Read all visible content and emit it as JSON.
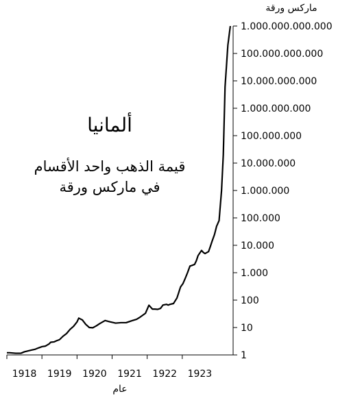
{
  "chart_data": {
    "type": "line",
    "title": "ألمانيا",
    "subtitle": "قيمة الذهب واحد الأقسام\nفي ماركس ورقة",
    "xlabel": "عام",
    "ylabel": "ماركس ورقة",
    "yscale": "log",
    "ylim": [
      1,
      1000000000000
    ],
    "xlim": [
      1917.5,
      1923.95
    ],
    "grid": false,
    "legend": "none",
    "line_color": "#000000",
    "x_ticks": [
      {
        "value": 1918,
        "label": "1918"
      },
      {
        "value": 1919,
        "label": "1919"
      },
      {
        "value": 1920,
        "label": "1920"
      },
      {
        "value": 1921,
        "label": "1921"
      },
      {
        "value": 1922,
        "label": "1922"
      },
      {
        "value": 1923,
        "label": "1923"
      }
    ],
    "y_ticks": [
      {
        "value": 1,
        "label": "1"
      },
      {
        "value": 10,
        "label": "10"
      },
      {
        "value": 100,
        "label": "100"
      },
      {
        "value": 1000,
        "label": "1.000"
      },
      {
        "value": 10000,
        "label": "10.000"
      },
      {
        "value": 100000,
        "label": "100.000"
      },
      {
        "value": 1000000,
        "label": "1.000.000"
      },
      {
        "value": 10000000,
        "label": "10.000.000"
      },
      {
        "value": 100000000,
        "label": "100.000.000"
      },
      {
        "value": 1000000000,
        "label": "1.000.000.000"
      },
      {
        "value": 10000000000,
        "label": "10.000.000.000"
      },
      {
        "value": 100000000000,
        "label": "100.000.000.000"
      },
      {
        "value": 1000000000000,
        "label": "1.000.000.000.000"
      }
    ],
    "series": [
      {
        "x": [
          1917.5,
          1917.58,
          1917.75,
          1917.9,
          1918.0,
          1918.1,
          1918.2,
          1918.3,
          1918.4,
          1918.5,
          1918.6,
          1918.7,
          1918.75,
          1918.85,
          1918.92,
          1919.0,
          1919.1,
          1919.2,
          1919.3,
          1919.4,
          1919.5,
          1919.55,
          1919.65,
          1919.75,
          1919.85,
          1919.95,
          1920.05,
          1920.15,
          1920.3,
          1920.45,
          1920.6,
          1920.75,
          1920.9,
          1921.05,
          1921.2,
          1921.3,
          1921.45,
          1921.55,
          1921.65,
          1921.72,
          1921.8,
          1921.88,
          1921.95,
          1922.05,
          1922.1,
          1922.15,
          1922.25,
          1922.35,
          1922.45,
          1922.52,
          1922.58,
          1922.65,
          1922.72,
          1922.78,
          1922.85,
          1922.9,
          1922.95,
          1923.05,
          1923.1,
          1923.15,
          1923.25,
          1923.3,
          1923.35,
          1923.42,
          1923.48,
          1923.55,
          1923.62,
          1923.67,
          1923.72,
          1923.8,
          1923.87
        ],
        "y": [
          1.2,
          1.2,
          1.15,
          1.15,
          1.3,
          1.4,
          1.5,
          1.6,
          1.8,
          2.0,
          2.1,
          2.5,
          2.9,
          3.0,
          3.3,
          3.6,
          4.8,
          6.0,
          8.5,
          11,
          16,
          22,
          19,
          13,
          10,
          9.8,
          11.5,
          14,
          18,
          16,
          14.5,
          15,
          15,
          17.5,
          20,
          24,
          33,
          65,
          47,
          47,
          46,
          50,
          66,
          70,
          66,
          70,
          75,
          120,
          300,
          400,
          600,
          1000,
          1750,
          1850,
          2000,
          2700,
          4200,
          6500,
          5500,
          5000,
          5900,
          9000,
          14000,
          25000,
          50000,
          80000,
          1000000,
          20000000,
          6000000000,
          200000000000,
          1000000000000
        ]
      }
    ]
  }
}
